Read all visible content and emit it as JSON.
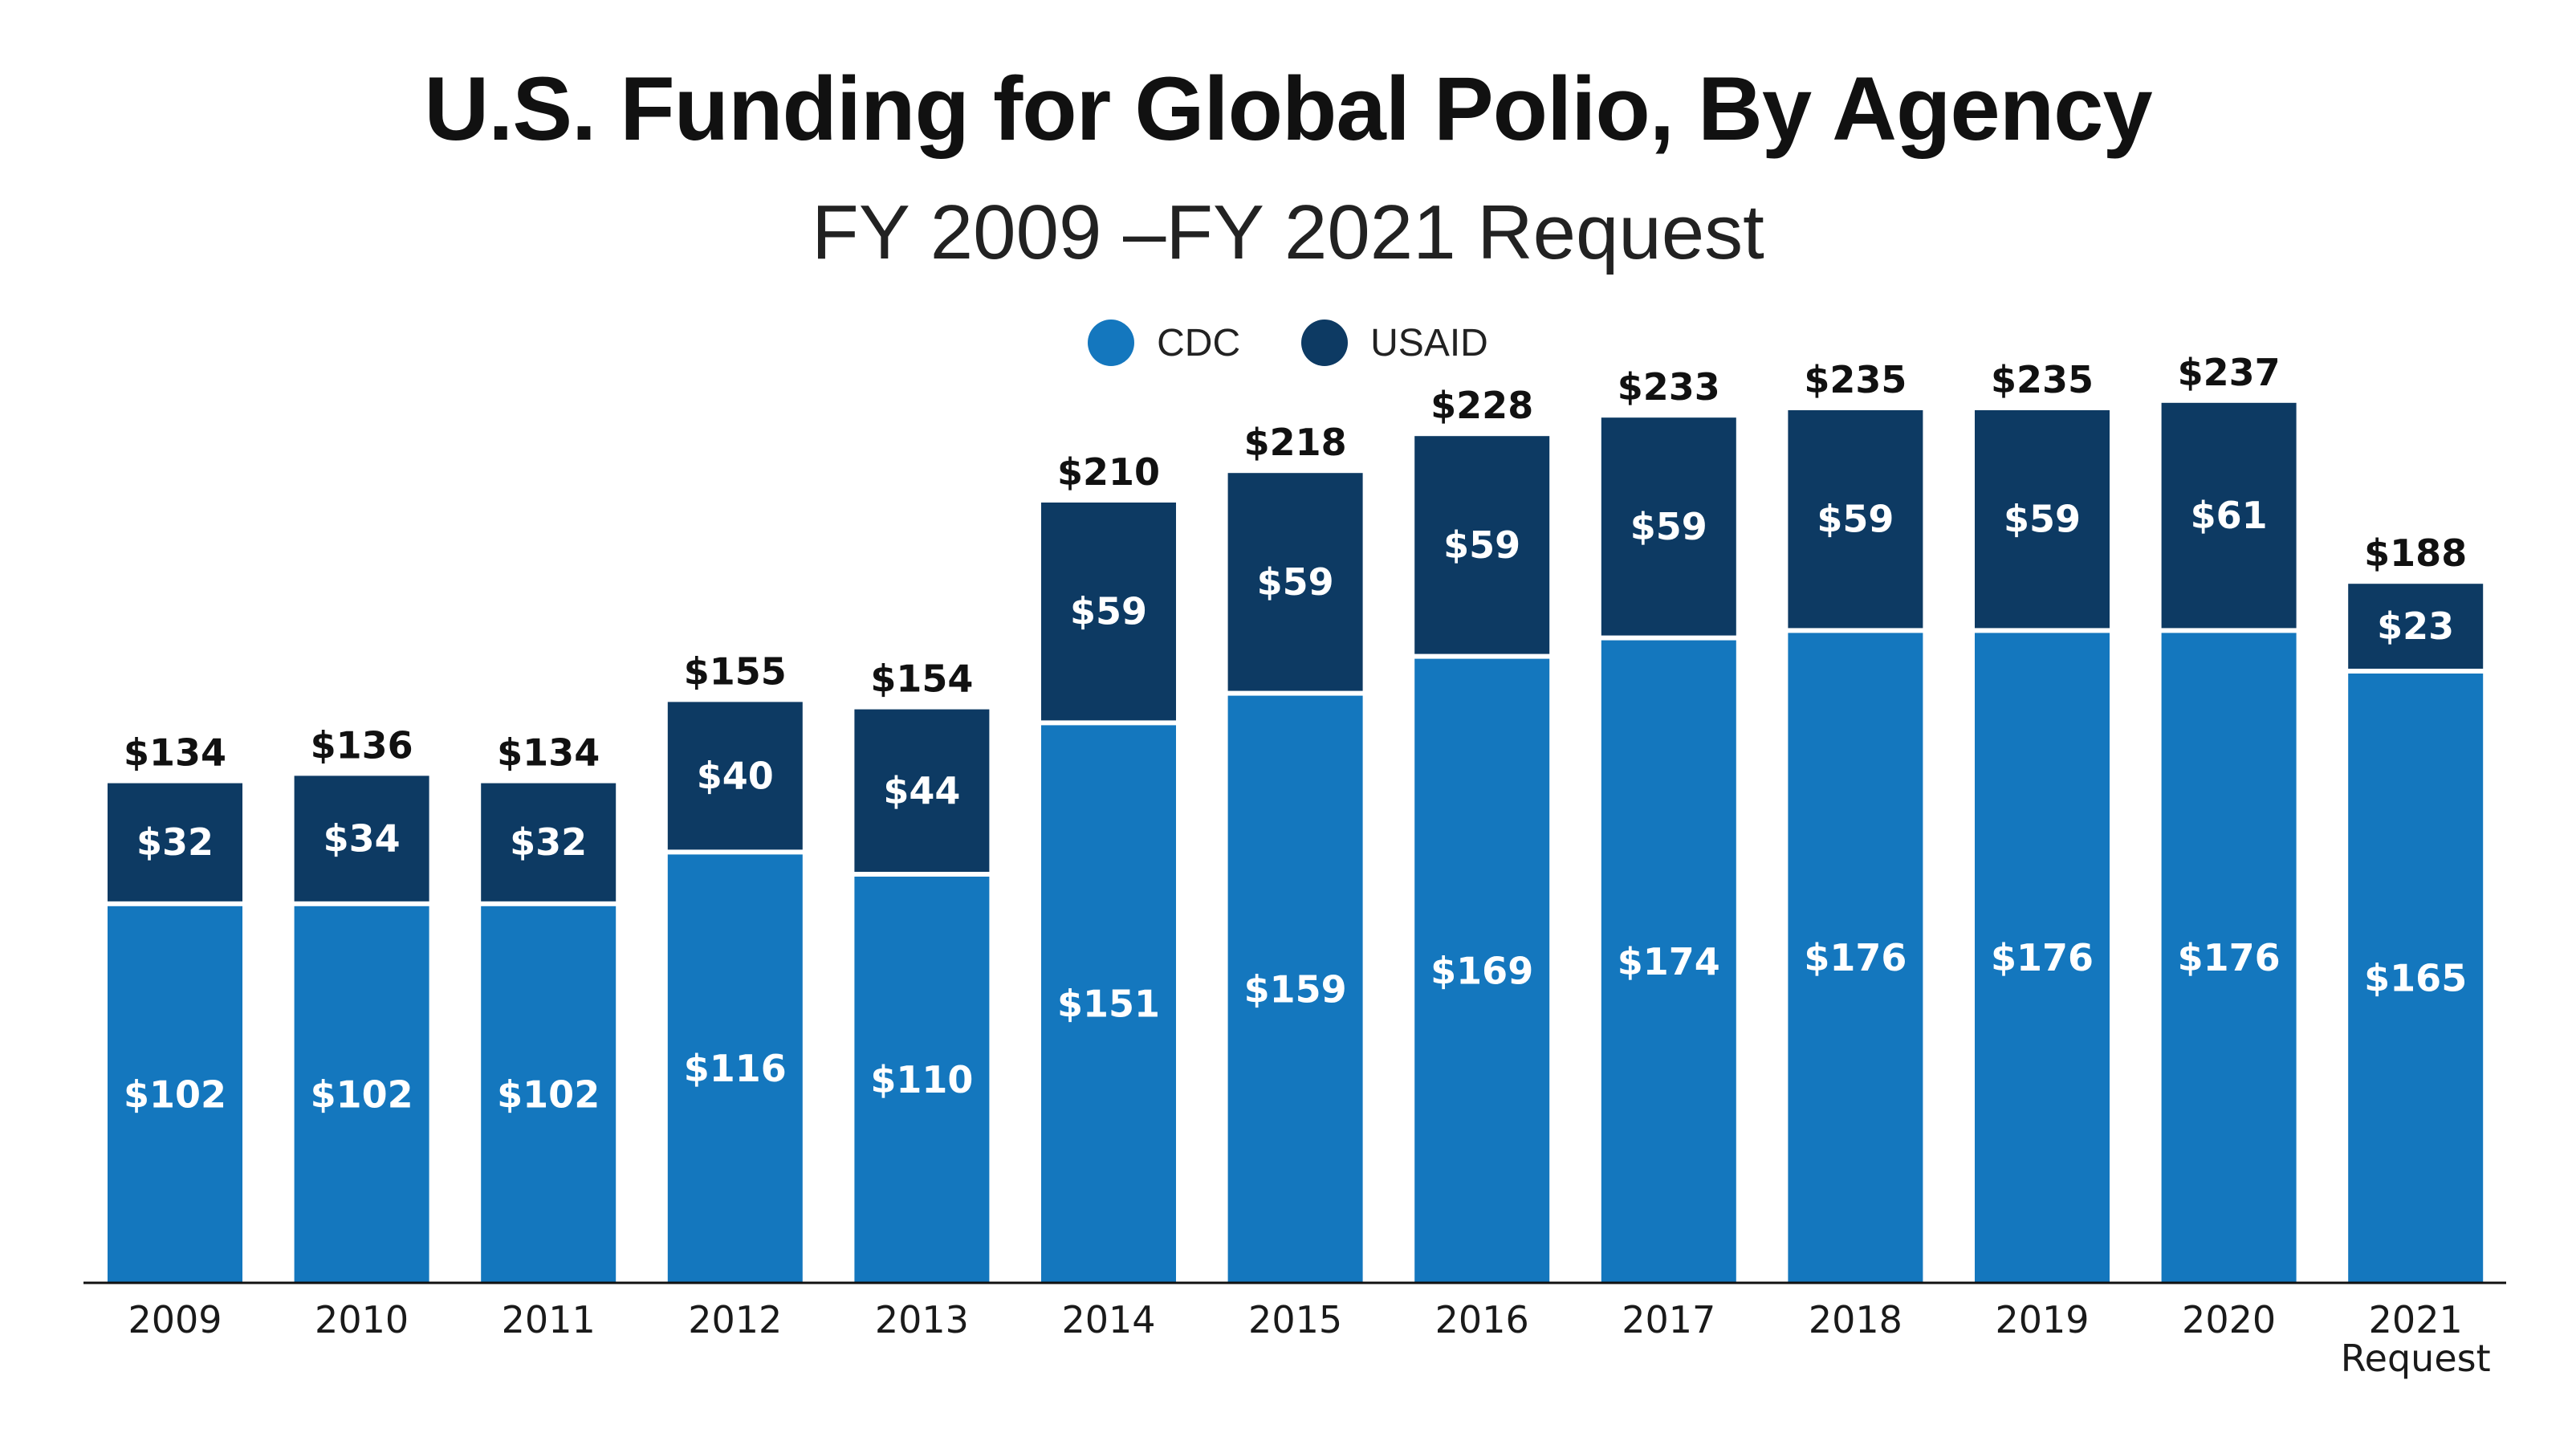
{
  "title": "U.S. Funding for Global Polio, By Agency",
  "subtitle": "FY 2009 –FY 2021 Request",
  "colors": {
    "CDC": "#1477be",
    "USAID": "#0d3a63",
    "axis": "#111111"
  },
  "chart_data": {
    "type": "bar",
    "stacked": true,
    "title": "U.S. Funding for Global Polio, By Agency",
    "subtitle": "FY 2009 –FY 2021 Request",
    "xlabel": "",
    "ylabel": "",
    "legend_position": "top-center",
    "grid": false,
    "value_prefix": "$",
    "ylim": [
      0,
      250
    ],
    "categories": [
      "2009",
      "2010",
      "2011",
      "2012",
      "2013",
      "2014",
      "2015",
      "2016",
      "2017",
      "2018",
      "2019",
      "2020",
      "2021\nRequest"
    ],
    "series": [
      {
        "name": "CDC",
        "values": [
          102,
          102,
          102,
          116,
          110,
          151,
          159,
          169,
          174,
          176,
          176,
          176,
          165
        ]
      },
      {
        "name": "USAID",
        "values": [
          32,
          34,
          32,
          40,
          44,
          59,
          59,
          59,
          59,
          59,
          59,
          61,
          23
        ]
      }
    ],
    "totals": [
      134,
      136,
      134,
      155,
      154,
      210,
      218,
      228,
      233,
      235,
      235,
      237,
      188
    ]
  }
}
